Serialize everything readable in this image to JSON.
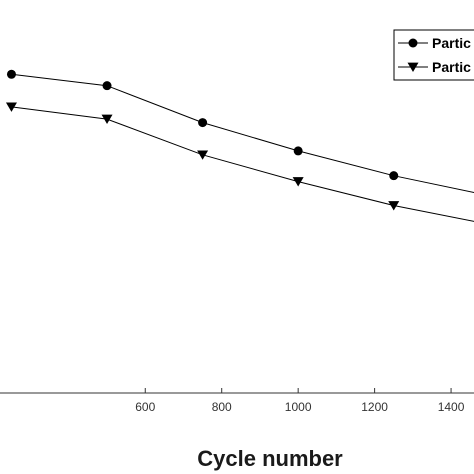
{
  "chart_data": {
    "type": "line",
    "xlabel": "Cycle number",
    "ylabel": "",
    "title": "",
    "xlim": [
      220,
      1460
    ],
    "ylim": [
      0,
      1
    ],
    "xticks": [
      600,
      800,
      1000,
      1200,
      1400
    ],
    "grid": false,
    "legend_position": "top-right",
    "series": [
      {
        "name": "Partic",
        "marker": "circle",
        "x": [
          250,
          500,
          750,
          1000,
          1250,
          1500
        ],
        "y": [
          0.811,
          0.782,
          0.688,
          0.616,
          0.553,
          0.502
        ]
      },
      {
        "name": "Partic",
        "marker": "triangle-down",
        "x": [
          250,
          500,
          750,
          1000,
          1250,
          1500
        ],
        "y": [
          0.728,
          0.697,
          0.606,
          0.538,
          0.477,
          0.429
        ]
      }
    ]
  },
  "colors": {
    "line": "#000000",
    "axis": "#333333"
  }
}
